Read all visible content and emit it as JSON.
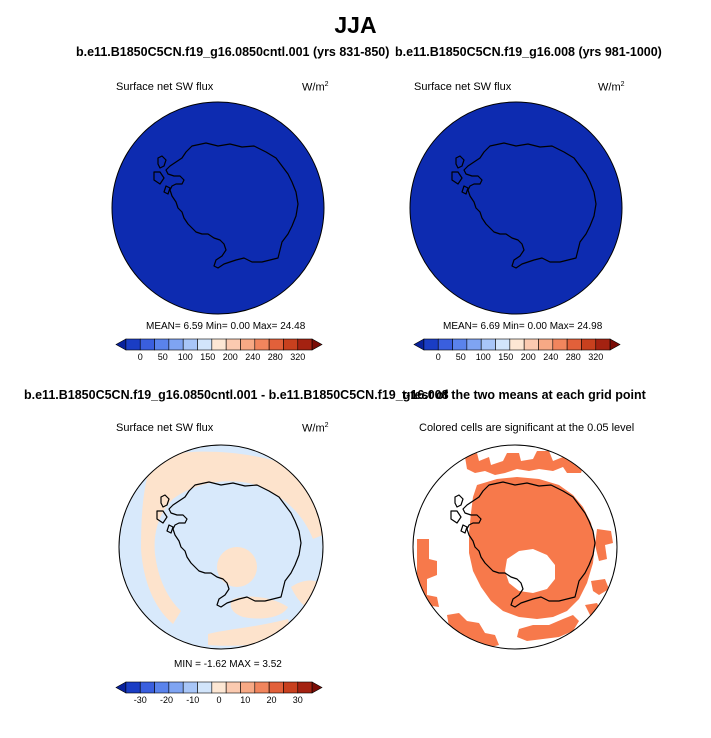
{
  "figure_title": "JJA",
  "panels": [
    {
      "title": "b.e11.B1850C5CN.f19_g16.0850cntl.001 (yrs 831-850)",
      "variable": "Surface net SW flux",
      "units_base": "W/m",
      "units_exp": "2",
      "stats": "MEAN=  6.59  Min=  0.00  Max=  24.48"
    },
    {
      "title": "b.e11.B1850C5CN.f19_g16.008 (yrs 981-1000)",
      "variable": "Surface net SW flux",
      "units_base": "W/m",
      "units_exp": "2",
      "stats": "MEAN=  6.69  Min=  0.00  Max=  24.98"
    },
    {
      "title": "b.e11.B1850C5CN.f19_g16.0850cntl.001 - b.e11.B1850C5CN.f19_g16.008",
      "variable": "Surface net SW flux",
      "units_base": "W/m",
      "units_exp": "2",
      "stats": "MIN =  -1.62  MAX =   3.52"
    },
    {
      "title": "t-test of the two means at each grid point",
      "variable": "Colored cells are significant at the 0.05 level"
    }
  ],
  "colorbars": {
    "abs": {
      "labels": [
        "0",
        "50",
        "100",
        "150",
        "200",
        "240",
        "280",
        "320"
      ],
      "colors": [
        "#08219c",
        "#1a3dc4",
        "#3a5fde",
        "#5a83ec",
        "#7fa4f2",
        "#a8c6f8",
        "#d2e5fb",
        "#fde7d4",
        "#fbcab0",
        "#f7a985",
        "#f1855d",
        "#e2603a",
        "#c8401e",
        "#a42211",
        "#7a0c06"
      ]
    },
    "diff": {
      "labels": [
        "-30",
        "-20",
        "-10",
        "0",
        "10",
        "20",
        "30"
      ],
      "colors": [
        "#08219c",
        "#1a3dc4",
        "#3a5fde",
        "#5a83ec",
        "#7fa4f2",
        "#a8c6f8",
        "#d2e5fb",
        "#fde7d4",
        "#fbcab0",
        "#f7a985",
        "#f1855d",
        "#e2603a",
        "#c8401e",
        "#a42211",
        "#7a0c06"
      ]
    }
  },
  "colors": {
    "abs_fill": "#0d2bb0",
    "diff_base": "#d8e9fb",
    "diff_positive": "#fde3cc",
    "significant": "#f7794b"
  },
  "chart_data": [
    {
      "type": "heatmap",
      "title": "b.e11.B1850C5CN.f19_g16.0850cntl.001 (yrs 831-850)",
      "projection": "south polar stereographic",
      "variable": "Surface net SW flux",
      "units": "W/m2",
      "colorbar_ticks": [
        0,
        50,
        100,
        150,
        200,
        240,
        280,
        320
      ],
      "mean": 6.59,
      "min": 0.0,
      "max": 24.48
    },
    {
      "type": "heatmap",
      "title": "b.e11.B1850C5CN.f19_g16.008 (yrs 981-1000)",
      "projection": "south polar stereographic",
      "variable": "Surface net SW flux",
      "units": "W/m2",
      "colorbar_ticks": [
        0,
        50,
        100,
        150,
        200,
        240,
        280,
        320
      ],
      "mean": 6.69,
      "min": 0.0,
      "max": 24.98
    },
    {
      "type": "heatmap",
      "title": "b.e11.B1850C5CN.f19_g16.0850cntl.001 - b.e11.B1850C5CN.f19_g16.008",
      "projection": "south polar stereographic",
      "variable": "Surface net SW flux",
      "units": "W/m2",
      "colorbar_ticks": [
        -30,
        -20,
        -10,
        0,
        10,
        20,
        30
      ],
      "min": -1.62,
      "max": 3.52
    },
    {
      "type": "heatmap",
      "title": "t-test of the two means at each grid point",
      "projection": "south polar stereographic",
      "annotation": "Colored cells are significant at the 0.05 level"
    }
  ]
}
